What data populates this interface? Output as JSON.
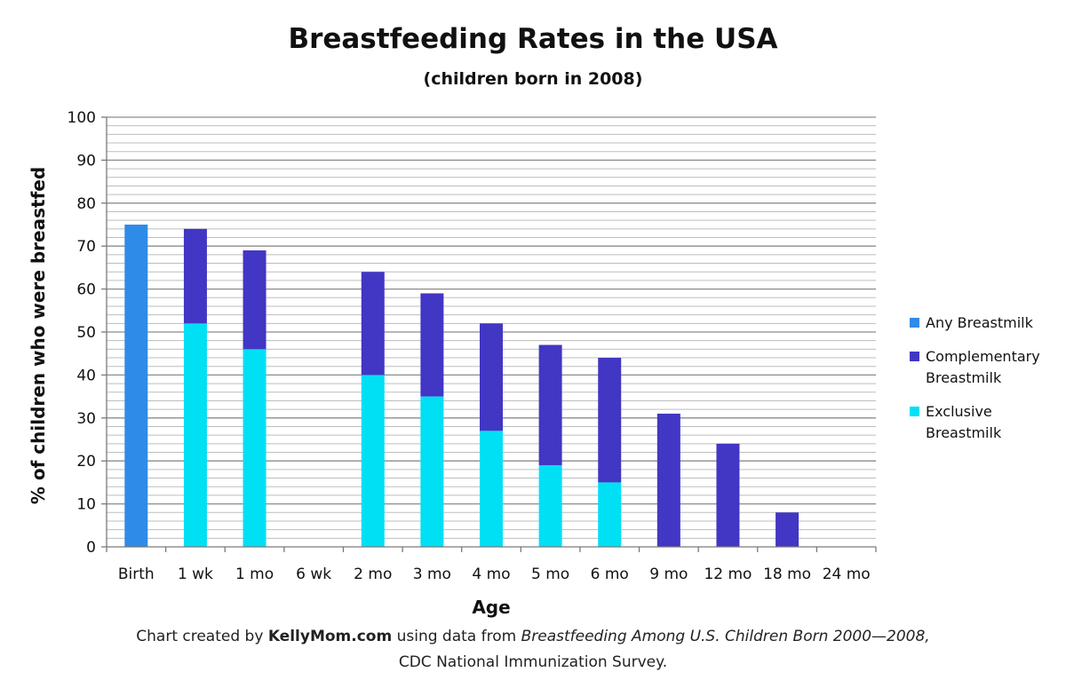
{
  "chart_data": {
    "type": "bar",
    "stacked": true,
    "title": "Breastfeeding Rates in the USA",
    "subtitle": "(children born in 2008)",
    "xlabel": "Age",
    "ylabel": "% of children who were breastfed",
    "ylim": [
      0,
      100
    ],
    "y_ticks": [
      0,
      10,
      20,
      30,
      40,
      50,
      60,
      70,
      80,
      90,
      100
    ],
    "minor_gridline_step": 2,
    "grid": true,
    "legend_position": "right",
    "categories": [
      "Birth",
      "1 wk",
      "1 mo",
      "6 wk",
      "2 mo",
      "3 mo",
      "4 mo",
      "5 mo",
      "6 mo",
      "9 mo",
      "12 mo",
      "18 mo",
      "24 mo"
    ],
    "series": [
      {
        "name": "Any Breastmilk",
        "color": "#2e8be8",
        "values": [
          75,
          0,
          0,
          0,
          0,
          0,
          0,
          0,
          0,
          0,
          0,
          0,
          0
        ]
      },
      {
        "name": "Exclusive Breastmilk",
        "color": "#00e0f5",
        "values": [
          0,
          52,
          46,
          0,
          40,
          35,
          27,
          19,
          15,
          0,
          0,
          0,
          0
        ]
      },
      {
        "name": "Complementary Breastmilk",
        "color": "#4236c4",
        "values": [
          0,
          22,
          23,
          0,
          24,
          24,
          25,
          28,
          29,
          31,
          24,
          8,
          0
        ]
      }
    ]
  },
  "legend": [
    {
      "label": "Any Breastmilk",
      "color": "#2e8be8"
    },
    {
      "label": "Complementary Breastmilk",
      "color": "#4236c4"
    },
    {
      "label": "Exclusive Breastmilk",
      "color": "#00e0f5"
    }
  ],
  "source_note": {
    "prefix": "Chart created by ",
    "site": "KellyMom.com",
    "middle": " using data from ",
    "publication": "Breastfeeding Among U.S. Children Born 2000—2008,",
    "line2": "CDC National Immunization Survey."
  }
}
